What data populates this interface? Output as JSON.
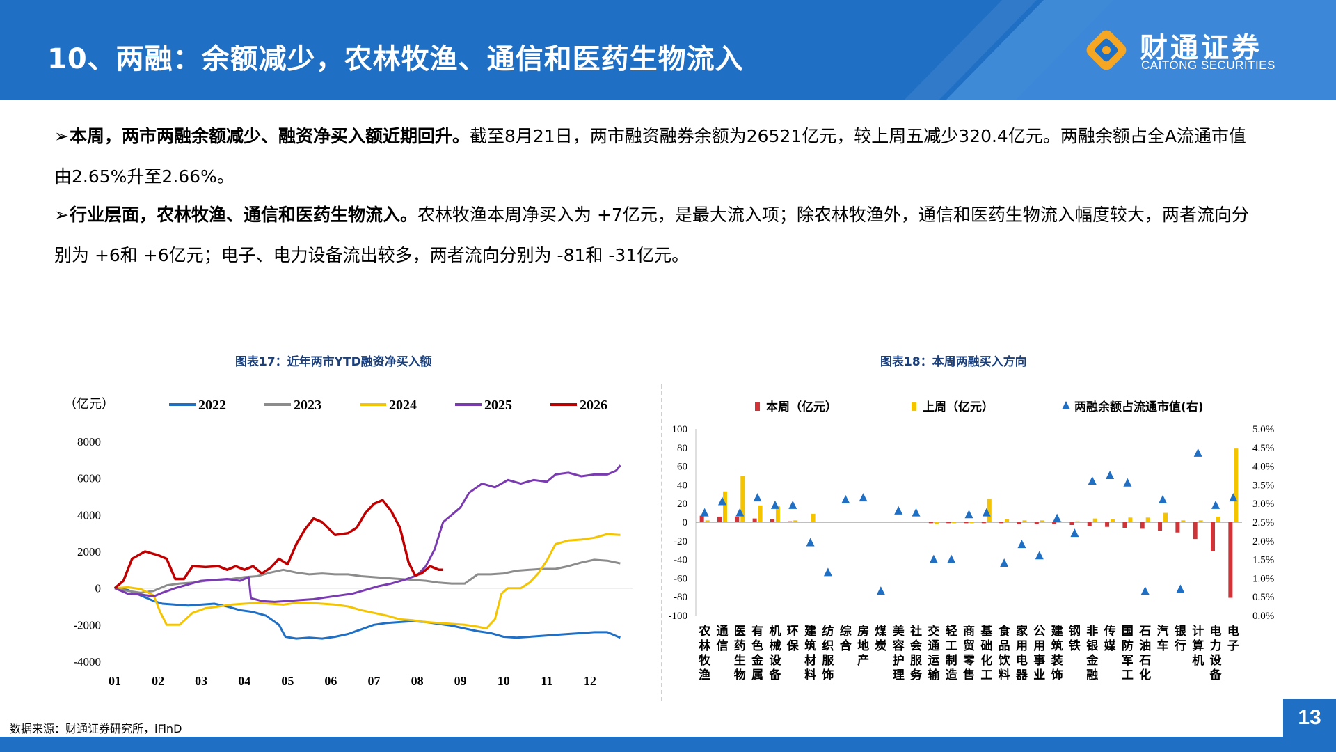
{
  "header": {
    "title": "10、两融：余额减少，农林牧渔、通信和医药生物流入",
    "logo_cn": "财通证券",
    "logo_en": "CAITONG SECURITIES"
  },
  "paragraphs": [
    {
      "bullet": "➢",
      "bold": "本周，两市两融余额减少、融资净买入额近期回升。",
      "text": "截至8月21日，两市融资融券余额为26521亿元，较上周五减少320.4亿元。两融余额占全A流通市值由2.65%升至2.66%。"
    },
    {
      "bullet": "➢",
      "bold": "行业层面，农林牧渔、通信和医药生物流入。",
      "text": "农林牧渔本周净买入为 +7亿元，是最大流入项；除农林牧渔外，通信和医药生物流入幅度较大，两者流向分别为 +6和 +6亿元；电子、电力设备流出较多，两者流向分别为 -81和 -31亿元。"
    }
  ],
  "footer": {
    "source": "数据来源：财通证券研究所，iFinD",
    "page": "13"
  },
  "colors": {
    "brand_blue": "#1f6fc5",
    "s2022": "#1f6fc5",
    "s2023": "#8c8c8c",
    "s2024": "#f5c400",
    "s2025": "#7a3bb0",
    "s2026": "#c00000",
    "bar_this": "#d13438",
    "bar_last": "#f5c400",
    "tri": "#1f6fc5"
  },
  "chart_data": [
    {
      "type": "line",
      "title": "图表17：近年两市YTD融资净买入额",
      "unit_label": "（亿元）",
      "x_ticks": [
        "01",
        "02",
        "03",
        "04",
        "05",
        "06",
        "07",
        "08",
        "09",
        "10",
        "11",
        "12"
      ],
      "ylim": [
        -4000,
        8000
      ],
      "y_ticks": [
        8000,
        6000,
        4000,
        2000,
        0,
        -2000,
        -4000
      ],
      "legend_position": "top",
      "series": [
        {
          "name": "2022",
          "points": [
            [
              1,
              0
            ],
            [
              1.3,
              -100
            ],
            [
              1.6,
              -400
            ],
            [
              1.9,
              -700
            ],
            [
              2.1,
              -850
            ],
            [
              2.4,
              -900
            ],
            [
              2.7,
              -950
            ],
            [
              3,
              -900
            ],
            [
              3.3,
              -850
            ],
            [
              3.6,
              -1000
            ],
            [
              3.9,
              -1200
            ],
            [
              4.2,
              -1300
            ],
            [
              4.5,
              -1500
            ],
            [
              4.8,
              -2000
            ],
            [
              4.95,
              -2650
            ],
            [
              5.2,
              -2750
            ],
            [
              5.5,
              -2700
            ],
            [
              5.8,
              -2750
            ],
            [
              6.1,
              -2650
            ],
            [
              6.4,
              -2500
            ],
            [
              6.7,
              -2250
            ],
            [
              7,
              -2000
            ],
            [
              7.3,
              -1900
            ],
            [
              7.6,
              -1850
            ],
            [
              7.9,
              -1800
            ],
            [
              8.2,
              -1850
            ],
            [
              8.5,
              -1950
            ],
            [
              8.8,
              -2050
            ],
            [
              9.1,
              -2200
            ],
            [
              9.4,
              -2350
            ],
            [
              9.7,
              -2450
            ],
            [
              10,
              -2650
            ],
            [
              10.3,
              -2700
            ],
            [
              10.6,
              -2650
            ],
            [
              10.9,
              -2600
            ],
            [
              11.2,
              -2550
            ],
            [
              11.5,
              -2500
            ],
            [
              11.8,
              -2450
            ],
            [
              12.1,
              -2400
            ],
            [
              12.4,
              -2400
            ],
            [
              12.7,
              -2700
            ]
          ]
        },
        {
          "name": "2023",
          "points": [
            [
              1,
              0
            ],
            [
              1.3,
              -150
            ],
            [
              1.6,
              -250
            ],
            [
              1.9,
              -150
            ],
            [
              2.2,
              150
            ],
            [
              2.5,
              250
            ],
            [
              2.8,
              300
            ],
            [
              3.1,
              400
            ],
            [
              3.4,
              450
            ],
            [
              3.7,
              500
            ],
            [
              4,
              600
            ],
            [
              4.3,
              650
            ],
            [
              4.6,
              850
            ],
            [
              4.9,
              1000
            ],
            [
              5.2,
              850
            ],
            [
              5.5,
              750
            ],
            [
              5.8,
              800
            ],
            [
              6.1,
              750
            ],
            [
              6.4,
              750
            ],
            [
              6.7,
              650
            ],
            [
              7,
              600
            ],
            [
              7.3,
              550
            ],
            [
              7.6,
              500
            ],
            [
              7.9,
              450
            ],
            [
              8.2,
              400
            ],
            [
              8.5,
              300
            ],
            [
              8.8,
              250
            ],
            [
              9.1,
              250
            ],
            [
              9.4,
              750
            ],
            [
              9.7,
              750
            ],
            [
              10,
              800
            ],
            [
              10.3,
              950
            ],
            [
              10.6,
              1000
            ],
            [
              10.9,
              1050
            ],
            [
              11.2,
              1050
            ],
            [
              11.5,
              1200
            ],
            [
              11.8,
              1400
            ],
            [
              12.1,
              1550
            ],
            [
              12.4,
              1500
            ],
            [
              12.7,
              1350
            ]
          ]
        },
        {
          "name": "2024",
          "points": [
            [
              1,
              0
            ],
            [
              1.3,
              50
            ],
            [
              1.6,
              -50
            ],
            [
              1.9,
              -400
            ],
            [
              2.05,
              -1300
            ],
            [
              2.2,
              -2000
            ],
            [
              2.5,
              -2000
            ],
            [
              2.8,
              -1350
            ],
            [
              3.1,
              -1100
            ],
            [
              3.4,
              -1000
            ],
            [
              3.7,
              -900
            ],
            [
              4,
              -850
            ],
            [
              4.3,
              -800
            ],
            [
              4.6,
              -850
            ],
            [
              4.9,
              -900
            ],
            [
              5.2,
              -800
            ],
            [
              5.5,
              -800
            ],
            [
              5.8,
              -850
            ],
            [
              6.1,
              -900
            ],
            [
              6.4,
              -1000
            ],
            [
              6.7,
              -1200
            ],
            [
              7,
              -1350
            ],
            [
              7.3,
              -1500
            ],
            [
              7.6,
              -1700
            ],
            [
              7.9,
              -1750
            ],
            [
              8.2,
              -1850
            ],
            [
              8.5,
              -1900
            ],
            [
              8.8,
              -1950
            ],
            [
              9.1,
              -2000
            ],
            [
              9.4,
              -2100
            ],
            [
              9.6,
              -2200
            ],
            [
              9.8,
              -1700
            ],
            [
              9.95,
              -300
            ],
            [
              10.1,
              0
            ],
            [
              10.4,
              0
            ],
            [
              10.6,
              300
            ],
            [
              10.8,
              800
            ],
            [
              11,
              1500
            ],
            [
              11.2,
              2400
            ],
            [
              11.5,
              2600
            ],
            [
              11.8,
              2650
            ],
            [
              12.1,
              2750
            ],
            [
              12.4,
              2950
            ],
            [
              12.7,
              2900
            ]
          ]
        },
        {
          "name": "2025",
          "points": [
            [
              1,
              0
            ],
            [
              1.3,
              -300
            ],
            [
              1.6,
              -350
            ],
            [
              1.9,
              -450
            ],
            [
              2.1,
              -250
            ],
            [
              2.4,
              0
            ],
            [
              2.7,
              200
            ],
            [
              3,
              400
            ],
            [
              3.3,
              450
            ],
            [
              3.6,
              500
            ],
            [
              3.9,
              400
            ],
            [
              4.1,
              600
            ],
            [
              4.15,
              -550
            ],
            [
              4.4,
              -700
            ],
            [
              4.7,
              -750
            ],
            [
              5,
              -700
            ],
            [
              5.3,
              -650
            ],
            [
              5.6,
              -600
            ],
            [
              5.9,
              -500
            ],
            [
              6.2,
              -400
            ],
            [
              6.5,
              -300
            ],
            [
              6.8,
              -100
            ],
            [
              7.1,
              100
            ],
            [
              7.4,
              250
            ],
            [
              7.7,
              450
            ],
            [
              8,
              700
            ],
            [
              8.2,
              1200
            ],
            [
              8.4,
              2100
            ],
            [
              8.6,
              3600
            ],
            [
              8.8,
              4000
            ],
            [
              9,
              4400
            ],
            [
              9.2,
              5200
            ],
            [
              9.5,
              5700
            ],
            [
              9.8,
              5500
            ],
            [
              10.1,
              5900
            ],
            [
              10.4,
              5700
            ],
            [
              10.7,
              5900
            ],
            [
              11,
              5800
            ],
            [
              11.2,
              6200
            ],
            [
              11.5,
              6300
            ],
            [
              11.8,
              6100
            ],
            [
              12.1,
              6200
            ],
            [
              12.4,
              6200
            ],
            [
              12.6,
              6400
            ],
            [
              12.7,
              6700
            ]
          ]
        },
        {
          "name": "2026",
          "points": [
            [
              1,
              0
            ],
            [
              1.2,
              400
            ],
            [
              1.4,
              1600
            ],
            [
              1.7,
              2000
            ],
            [
              2,
              1800
            ],
            [
              2.2,
              1600
            ],
            [
              2.4,
              500
            ],
            [
              2.6,
              500
            ],
            [
              2.8,
              1200
            ],
            [
              3.1,
              1150
            ],
            [
              3.4,
              1200
            ],
            [
              3.6,
              1000
            ],
            [
              3.8,
              1200
            ],
            [
              4,
              1000
            ],
            [
              4.2,
              1200
            ],
            [
              4.4,
              800
            ],
            [
              4.6,
              1100
            ],
            [
              4.8,
              1600
            ],
            [
              5,
              1300
            ],
            [
              5.2,
              2400
            ],
            [
              5.4,
              3200
            ],
            [
              5.6,
              3800
            ],
            [
              5.8,
              3600
            ],
            [
              6.1,
              2900
            ],
            [
              6.4,
              3000
            ],
            [
              6.6,
              3300
            ],
            [
              6.8,
              4100
            ],
            [
              7,
              4600
            ],
            [
              7.2,
              4800
            ],
            [
              7.4,
              4200
            ],
            [
              7.6,
              3300
            ],
            [
              7.8,
              1400
            ],
            [
              7.95,
              700
            ],
            [
              8.1,
              800
            ],
            [
              8.3,
              1200
            ],
            [
              8.5,
              1000
            ],
            [
              8.6,
              1000
            ]
          ]
        }
      ]
    },
    {
      "type": "bar",
      "title": "图表18：本周两融买入方向",
      "legend_position": "top",
      "categories": [
        "农林牧渔",
        "通信",
        "医药生物",
        "有色金属",
        "机械设备",
        "环保",
        "建筑材料",
        "纺织服饰",
        "综合",
        "房地产",
        "煤炭",
        "美容护理",
        "社会服务",
        "交通运输",
        "轻工制造",
        "商贸零售",
        "基础化工",
        "食品饮料",
        "家用电器",
        "公用事业",
        "建筑装饰",
        "钢铁",
        "非银金融",
        "传媒",
        "国防军工",
        "石油石化",
        "汽车",
        "银行",
        "计算机",
        "电力设备",
        "电子"
      ],
      "ylim_left": [
        -100,
        100
      ],
      "y_ticks_left": [
        100,
        80,
        60,
        40,
        20,
        0,
        -20,
        -40,
        -60,
        -80,
        -100
      ],
      "ylim_right": [
        0,
        5
      ],
      "y_ticks_right": [
        "5.0%",
        "4.5%",
        "4.0%",
        "3.5%",
        "3.0%",
        "2.5%",
        "2.0%",
        "1.5%",
        "1.0%",
        "0.5%",
        "0.0%"
      ],
      "series": [
        {
          "name": "本周（亿元）",
          "values": [
            7,
            6,
            6,
            4,
            3,
            1,
            0,
            0,
            0,
            0,
            0,
            0,
            0,
            -1,
            -1,
            -1,
            -1,
            -1,
            -2,
            -2,
            -2,
            -3,
            -4,
            -5,
            -6,
            -7,
            -9,
            -11,
            -18,
            -31,
            -81
          ]
        },
        {
          "name": "上周（亿元）",
          "values": [
            2,
            33,
            50,
            18,
            17,
            2,
            9,
            0,
            0,
            0,
            0,
            0,
            0,
            -2,
            -1,
            -1,
            25,
            3,
            2,
            2,
            1,
            1,
            4,
            3,
            5,
            5,
            10,
            2,
            2,
            6,
            79
          ]
        },
        {
          "name": "两融余额占流通市值(右)",
          "values": [
            2.75,
            3.05,
            2.75,
            3.15,
            2.95,
            2.95,
            1.95,
            1.15,
            3.1,
            3.15,
            0.65,
            2.8,
            2.75,
            1.5,
            1.5,
            2.7,
            2.75,
            1.4,
            1.9,
            1.6,
            2.6,
            2.2,
            3.6,
            3.75,
            3.55,
            0.65,
            3.1,
            0.7,
            4.35,
            2.95,
            3.15
          ]
        }
      ]
    }
  ]
}
